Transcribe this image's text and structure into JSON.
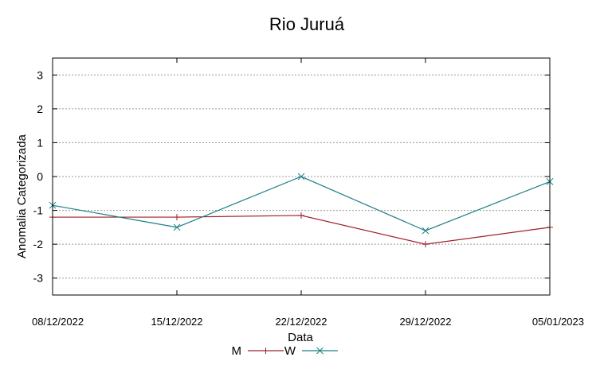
{
  "chart_data": {
    "type": "line",
    "title": "Rio Juruá",
    "xlabel": "Data",
    "ylabel": "Anomalia Categorizada",
    "categories": [
      "08/12/2022",
      "15/12/2022",
      "22/12/2022",
      "29/12/2022",
      "05/01/2023"
    ],
    "ylim": [
      -3.5,
      3.5
    ],
    "yticks": [
      "3",
      "2",
      "1",
      "0",
      "-1",
      "-2",
      "-3"
    ],
    "grid": true,
    "legend_position": "bottom-center",
    "series": [
      {
        "name": "M",
        "color": "#a0202a",
        "marker": "plus",
        "values": [
          -1.2,
          -1.2,
          -1.15,
          -2.0,
          -1.5
        ]
      },
      {
        "name": "W",
        "color": "#1a7f86",
        "marker": "x",
        "values": [
          -0.85,
          -1.5,
          0.0,
          -1.6,
          -0.15
        ]
      }
    ]
  }
}
